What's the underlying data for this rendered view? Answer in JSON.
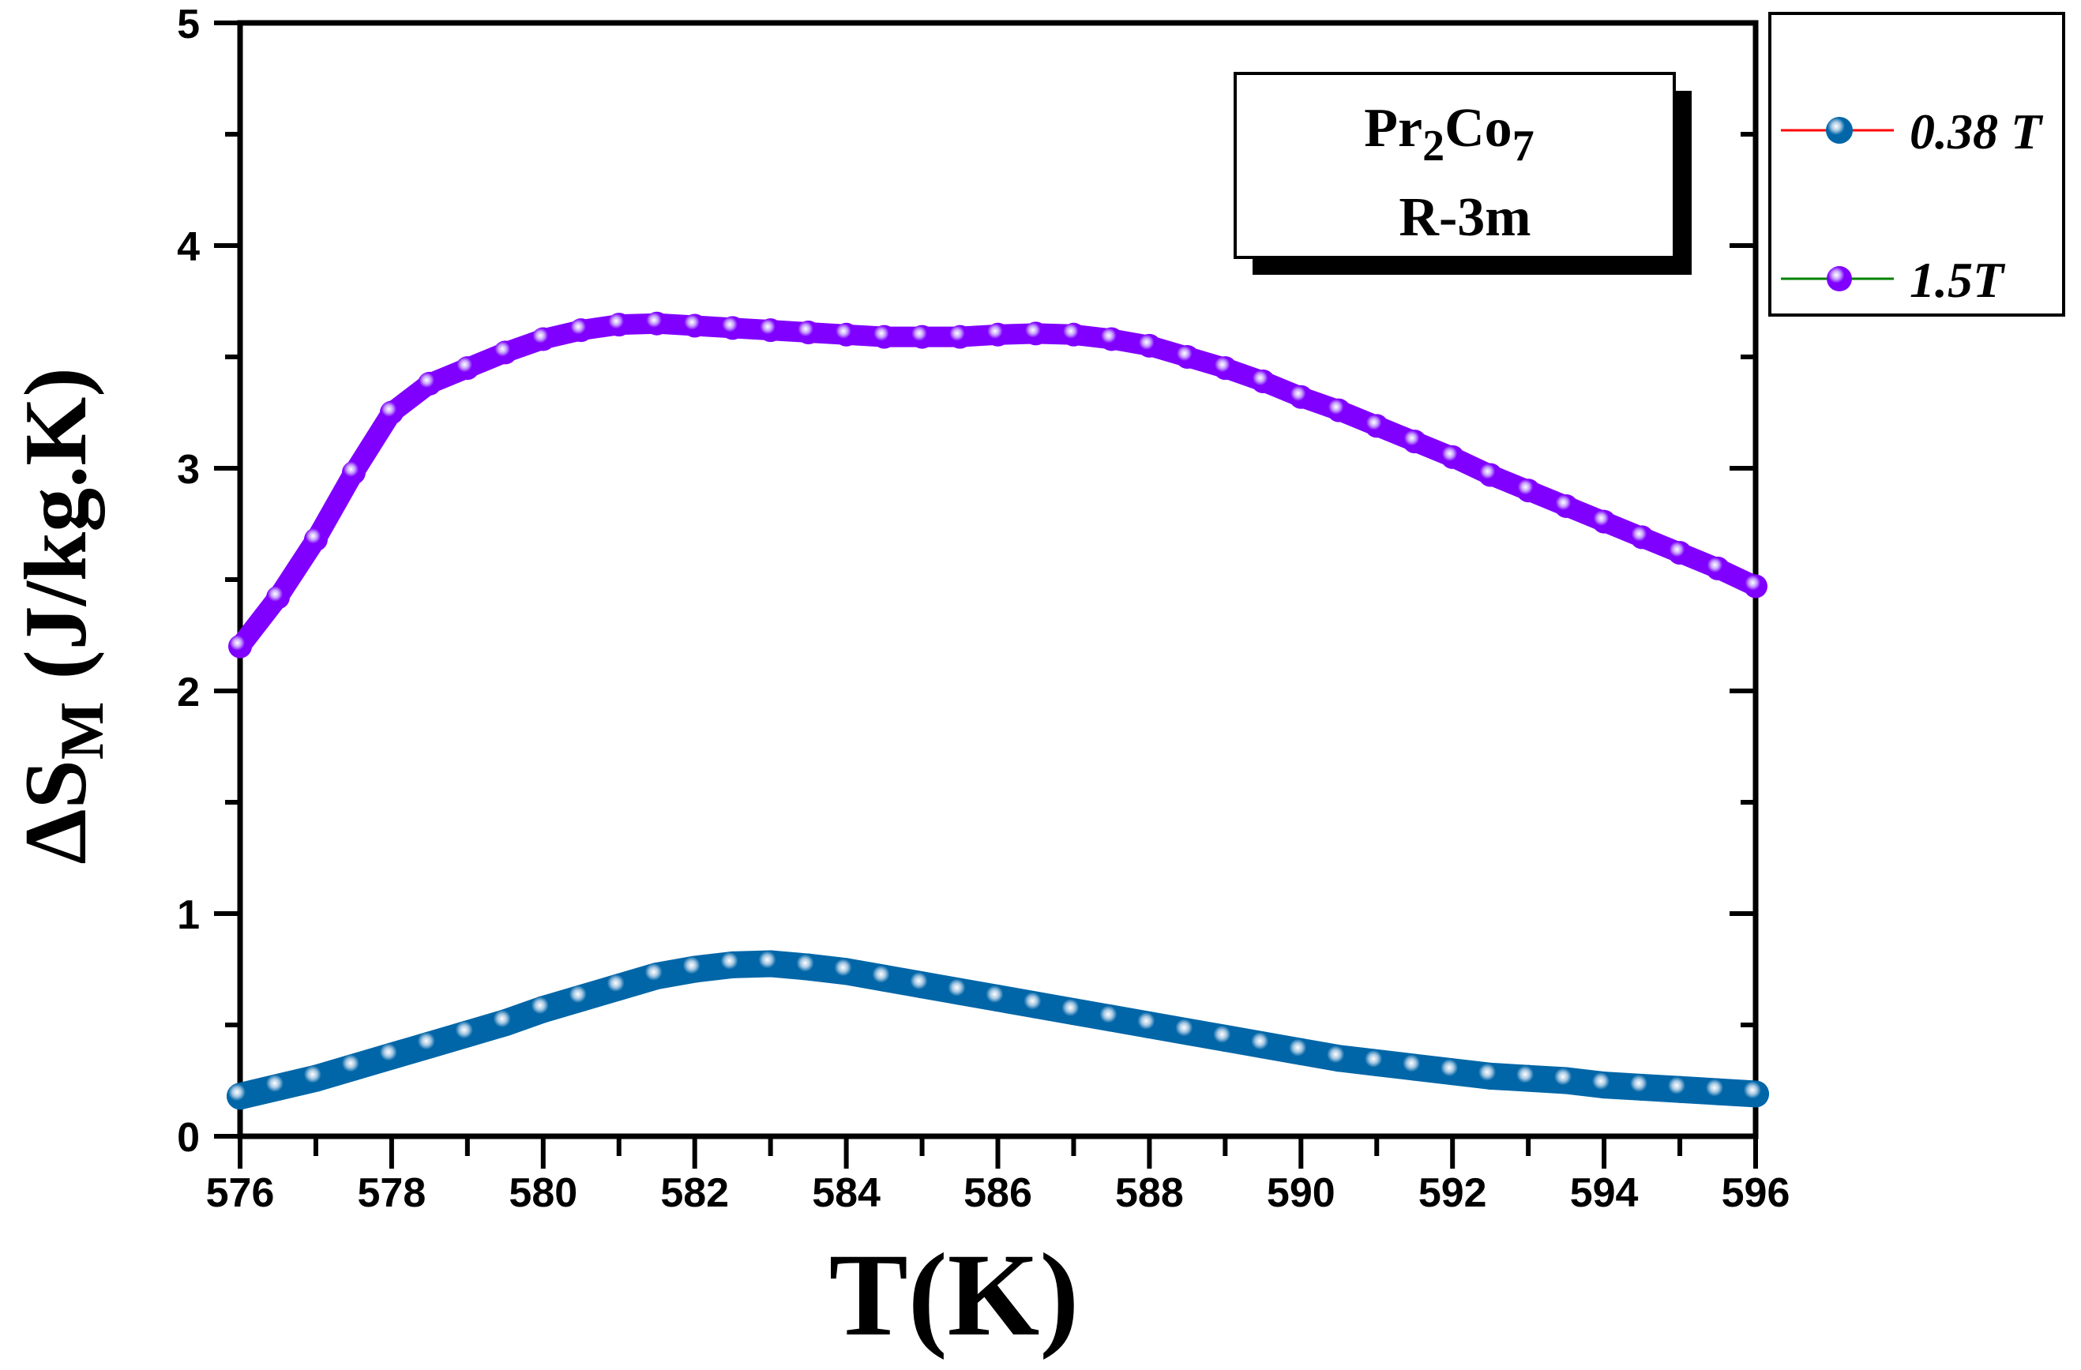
{
  "chart_data": {
    "type": "scatter",
    "xlabel": "T(K)",
    "ylabel": {
      "prefix": "ΔS",
      "sub": "M",
      "suffix": " (J/kg.K)"
    },
    "xlim": [
      576,
      596
    ],
    "ylim": [
      0,
      5
    ],
    "x_ticks": [
      "576",
      "578",
      "580",
      "582",
      "584",
      "586",
      "588",
      "590",
      "592",
      "594",
      "596"
    ],
    "y_ticks": [
      "0",
      "1",
      "2",
      "3",
      "4",
      "5"
    ],
    "grid": false,
    "legend_position": "outside-top-right",
    "annotation": {
      "line1": {
        "a": "Pr",
        "b": "2",
        "c": "Co",
        "d": "7"
      },
      "line2": "R-3m"
    },
    "x": [
      576,
      576.5,
      577,
      577.5,
      578,
      578.5,
      579,
      579.5,
      580,
      580.5,
      581,
      581.5,
      582,
      582.5,
      583,
      583.5,
      584,
      584.5,
      585,
      585.5,
      586,
      586.5,
      587,
      587.5,
      588,
      588.5,
      589,
      589.5,
      590,
      590.5,
      591,
      591.5,
      592,
      592.5,
      593,
      593.5,
      594,
      594.5,
      595,
      595.5,
      596
    ],
    "series": [
      {
        "name": "0.38 T",
        "marker_color": "#0066a8",
        "line_color": "#ff0000",
        "values": [
          0.18,
          0.22,
          0.26,
          0.31,
          0.36,
          0.41,
          0.46,
          0.51,
          0.57,
          0.62,
          0.67,
          0.72,
          0.75,
          0.77,
          0.775,
          0.76,
          0.74,
          0.71,
          0.68,
          0.65,
          0.62,
          0.59,
          0.56,
          0.53,
          0.5,
          0.47,
          0.44,
          0.41,
          0.38,
          0.35,
          0.33,
          0.31,
          0.29,
          0.27,
          0.26,
          0.25,
          0.23,
          0.22,
          0.21,
          0.2,
          0.19
        ]
      },
      {
        "name": "1.5T",
        "marker_color": "#8000ff",
        "line_color": "#008000",
        "values": [
          2.2,
          2.42,
          2.68,
          2.98,
          3.25,
          3.38,
          3.45,
          3.52,
          3.58,
          3.62,
          3.645,
          3.65,
          3.64,
          3.63,
          3.62,
          3.61,
          3.6,
          3.59,
          3.59,
          3.59,
          3.6,
          3.605,
          3.6,
          3.58,
          3.55,
          3.5,
          3.45,
          3.39,
          3.32,
          3.26,
          3.19,
          3.12,
          3.05,
          2.97,
          2.9,
          2.83,
          2.76,
          2.69,
          2.62,
          2.55,
          2.47
        ]
      }
    ]
  }
}
